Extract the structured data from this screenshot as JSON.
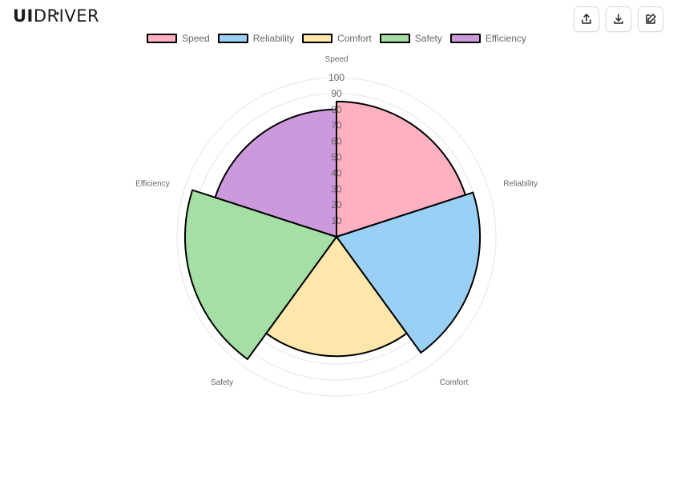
{
  "header": {
    "logo_strong": "UI",
    "logo_light": "DRIVER"
  },
  "toolbar": {
    "share_icon": "share-icon",
    "download_icon": "download-icon",
    "edit_icon": "edit-icon"
  },
  "chart_data": {
    "type": "polar-area",
    "title": "",
    "categories": [
      "Speed",
      "Reliability",
      "Comfort",
      "Safety",
      "Efficiency"
    ],
    "values": [
      85,
      90,
      75,
      95,
      80
    ],
    "colors": [
      "#ffb1c1",
      "#9ad0f5",
      "#ffe6aa",
      "#a5dfa5",
      "#cc99dd"
    ],
    "border_color": "#000000",
    "r_axis": {
      "min": 0,
      "max": 100,
      "step": 10,
      "ticks": [
        "10",
        "20",
        "30",
        "40",
        "50",
        "60",
        "70",
        "80",
        "90",
        "100"
      ]
    },
    "legend_position": "top",
    "grid": true
  }
}
